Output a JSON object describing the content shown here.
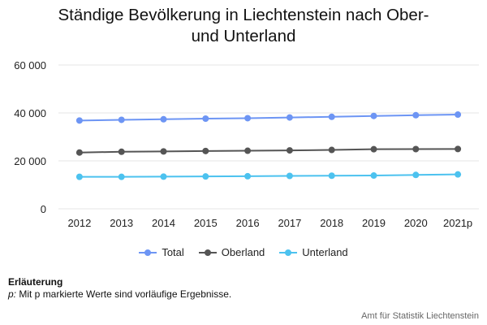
{
  "title_line1": "Ständige Bevölkerung in Liechtenstein nach Ober-",
  "title_line2": "und Unterland",
  "chart_data": {
    "type": "line",
    "categories": [
      "2012",
      "2013",
      "2014",
      "2015",
      "2016",
      "2017",
      "2018",
      "2019",
      "2020",
      "2021p"
    ],
    "series": [
      {
        "name": "Total",
        "color": "#6d95f4",
        "values": [
          36838,
          37129,
          37366,
          37622,
          37810,
          38114,
          38378,
          38749,
          39055,
          39308
        ]
      },
      {
        "name": "Oberland",
        "color": "#555555",
        "values": [
          23490,
          23795,
          23937,
          24120,
          24220,
          24380,
          24560,
          24860,
          24920,
          24960
        ]
      },
      {
        "name": "Unterland",
        "color": "#4cc2ef",
        "values": [
          13348,
          13334,
          13429,
          13502,
          13590,
          13734,
          13818,
          13889,
          14135,
          14348
        ]
      }
    ],
    "yticks": [
      "0",
      "20 000",
      "40 000",
      "60 000"
    ],
    "ylim": [
      0,
      60000
    ],
    "grid": true,
    "legend": "bottom"
  },
  "note": {
    "title": "Erläuterung",
    "p_label": "p:",
    "text": " Mit p markierte Werte sind vorläufige Ergebnisse."
  },
  "credits": "Amt für Statistik Liechtenstein"
}
